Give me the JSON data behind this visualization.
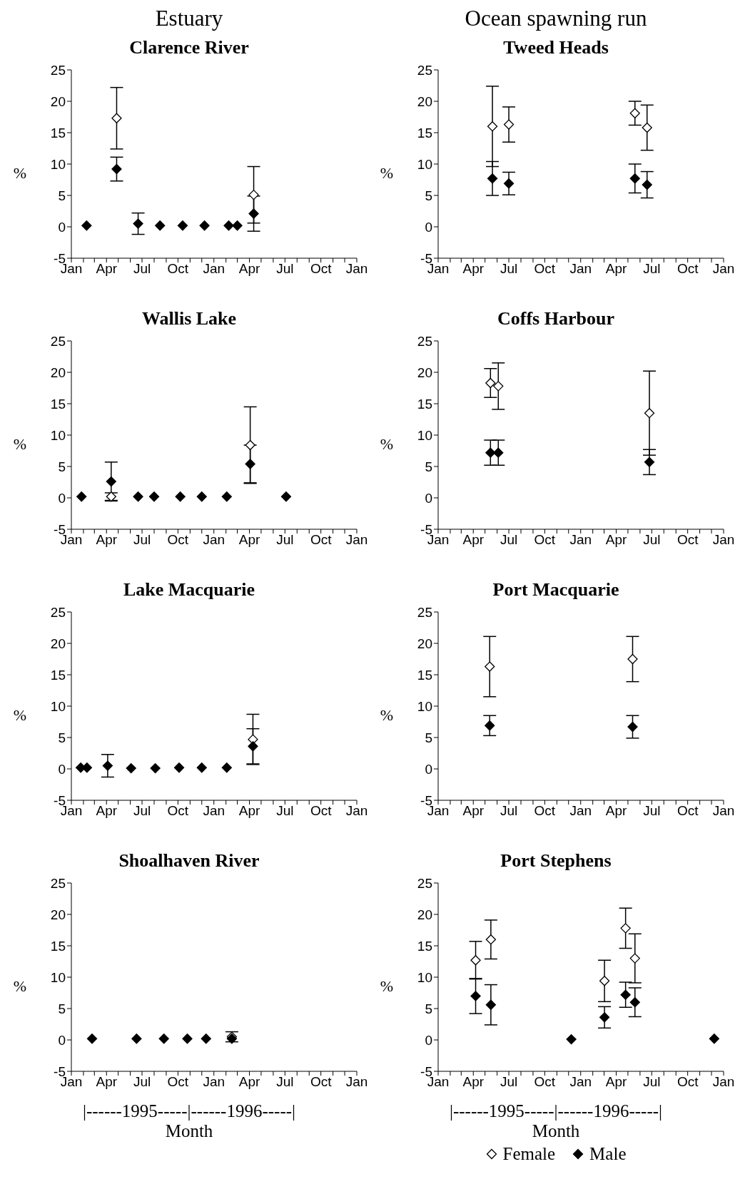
{
  "chart_data": [
    {
      "type": "scatter",
      "title": "Clarence River",
      "ylabel": "%",
      "annotations": [
        "Estuary"
      ],
      "marker": "diamond",
      "grid": false,
      "legend": false,
      "xlim": [
        "1995-01-01",
        "1997-01-01"
      ],
      "xticks": [
        {
          "value": "1995-01",
          "label": "Jan"
        },
        {
          "value": "1995-02",
          "label": null
        },
        {
          "value": "1995-03",
          "label": null
        },
        {
          "value": "1995-04",
          "label": "Apr"
        },
        {
          "value": "1995-05",
          "label": null
        },
        {
          "value": "1995-06",
          "label": null
        },
        {
          "value": "1995-07",
          "label": "Jul"
        },
        {
          "value": "1995-08",
          "label": null
        },
        {
          "value": "1995-09",
          "label": null
        },
        {
          "value": "1995-10",
          "label": "Oct"
        },
        {
          "value": "1995-11",
          "label": null
        },
        {
          "value": "1995-12",
          "label": null
        },
        {
          "value": "1996-01",
          "label": "Jan"
        },
        {
          "value": "1996-02",
          "label": null
        },
        {
          "value": "1996-03",
          "label": null
        },
        {
          "value": "1996-04",
          "label": "Apr"
        },
        {
          "value": "1996-05",
          "label": null
        },
        {
          "value": "1996-06",
          "label": null
        },
        {
          "value": "1996-07",
          "label": "Jul"
        },
        {
          "value": "1996-08",
          "label": null
        },
        {
          "value": "1996-09",
          "label": null
        },
        {
          "value": "1996-10",
          "label": "Oct"
        },
        {
          "value": "1996-11",
          "label": null
        },
        {
          "value": "1996-12",
          "label": null
        },
        {
          "value": "1997-01",
          "label": "Jan"
        }
      ],
      "ylim": [
        -5,
        25
      ],
      "yticks": [
        -5,
        0,
        5,
        10,
        15,
        20,
        25
      ],
      "series": [
        {
          "color": "#ffffff",
          "x": [
            "1995-04-27",
            "1996-04-12"
          ],
          "values": [
            17.3,
            5.1
          ],
          "errors": [
            4.9,
            4.5
          ]
        },
        {
          "color": "#000000",
          "x": [
            "1995-02-09",
            "1995-04-27",
            "1995-06-21",
            "1995-08-16",
            "1995-10-13",
            "1995-12-08",
            "1996-02-08",
            "1996-03-01",
            "1996-04-12"
          ],
          "values": [
            0.2,
            9.2,
            0.5,
            0.2,
            0.2,
            0.2,
            0.2,
            0.2,
            2.1
          ],
          "errors": [
            null,
            1.9,
            1.7,
            null,
            null,
            null,
            null,
            null,
            2.8
          ]
        }
      ]
    },
    {
      "type": "scatter",
      "title": "Tweed Heads",
      "ylabel": "%",
      "annotations": [
        "Ocean spawning run"
      ],
      "marker": "diamond",
      "grid": false,
      "legend": false,
      "xlim": [
        "1995-01-01",
        "1997-01-01"
      ],
      "xticks": [
        {
          "value": "1995-01",
          "label": "Jan"
        },
        {
          "value": "1995-02",
          "label": null
        },
        {
          "value": "1995-03",
          "label": null
        },
        {
          "value": "1995-04",
          "label": "Apr"
        },
        {
          "value": "1995-05",
          "label": null
        },
        {
          "value": "1995-06",
          "label": null
        },
        {
          "value": "1995-07",
          "label": "Jul"
        },
        {
          "value": "1995-08",
          "label": null
        },
        {
          "value": "1995-09",
          "label": null
        },
        {
          "value": "1995-10",
          "label": "Oct"
        },
        {
          "value": "1995-11",
          "label": null
        },
        {
          "value": "1995-12",
          "label": null
        },
        {
          "value": "1996-01",
          "label": "Jan"
        },
        {
          "value": "1996-02",
          "label": null
        },
        {
          "value": "1996-03",
          "label": null
        },
        {
          "value": "1996-04",
          "label": "Apr"
        },
        {
          "value": "1996-05",
          "label": null
        },
        {
          "value": "1996-06",
          "label": null
        },
        {
          "value": "1996-07",
          "label": "Jul"
        },
        {
          "value": "1996-08",
          "label": null
        },
        {
          "value": "1996-09",
          "label": null
        },
        {
          "value": "1996-10",
          "label": "Oct"
        },
        {
          "value": "1996-11",
          "label": null
        },
        {
          "value": "1996-12",
          "label": null
        },
        {
          "value": "1997-01",
          "label": "Jan"
        }
      ],
      "ylim": [
        -5,
        25
      ],
      "yticks": [
        -5,
        0,
        5,
        10,
        15,
        20,
        25
      ],
      "series": [
        {
          "color": "#ffffff",
          "x": [
            "1995-05-20",
            "1995-07-01",
            "1996-05-19",
            "1996-06-19"
          ],
          "values": [
            16.0,
            16.3,
            18.1,
            15.8
          ],
          "errors": [
            6.4,
            2.8,
            1.9,
            3.6
          ]
        },
        {
          "color": "#000000",
          "x": [
            "1995-05-20",
            "1995-07-01",
            "1996-05-19",
            "1996-06-19"
          ],
          "values": [
            7.7,
            6.9,
            7.7,
            6.7
          ],
          "errors": [
            2.7,
            1.8,
            2.3,
            2.1
          ]
        }
      ]
    },
    {
      "type": "scatter",
      "title": "Wallis Lake",
      "ylabel": "%",
      "marker": "diamond",
      "grid": false,
      "legend": false,
      "xlim": [
        "1995-01-01",
        "1997-01-01"
      ],
      "xticks": [
        {
          "value": "1995-01",
          "label": "Jan"
        },
        {
          "value": "1995-02",
          "label": null
        },
        {
          "value": "1995-03",
          "label": null
        },
        {
          "value": "1995-04",
          "label": "Apr"
        },
        {
          "value": "1995-05",
          "label": null
        },
        {
          "value": "1995-06",
          "label": null
        },
        {
          "value": "1995-07",
          "label": "Jul"
        },
        {
          "value": "1995-08",
          "label": null
        },
        {
          "value": "1995-09",
          "label": null
        },
        {
          "value": "1995-10",
          "label": "Oct"
        },
        {
          "value": "1995-11",
          "label": null
        },
        {
          "value": "1995-12",
          "label": null
        },
        {
          "value": "1996-01",
          "label": "Jan"
        },
        {
          "value": "1996-02",
          "label": null
        },
        {
          "value": "1996-03",
          "label": null
        },
        {
          "value": "1996-04",
          "label": "Apr"
        },
        {
          "value": "1996-05",
          "label": null
        },
        {
          "value": "1996-06",
          "label": null
        },
        {
          "value": "1996-07",
          "label": "Jul"
        },
        {
          "value": "1996-08",
          "label": null
        },
        {
          "value": "1996-09",
          "label": null
        },
        {
          "value": "1996-10",
          "label": "Oct"
        },
        {
          "value": "1996-11",
          "label": null
        },
        {
          "value": "1996-12",
          "label": null
        },
        {
          "value": "1997-01",
          "label": "Jan"
        }
      ],
      "ylim": [
        -5,
        25
      ],
      "yticks": [
        -5,
        0,
        5,
        10,
        15,
        20,
        25
      ],
      "series": [
        {
          "color": "#ffffff",
          "x": [
            "1995-04-13",
            "1996-04-03"
          ],
          "values": [
            0.2,
            8.4
          ],
          "errors": [
            0.6,
            6.1
          ]
        },
        {
          "color": "#000000",
          "x": [
            "1995-01-27",
            "1995-04-13",
            "1995-06-21",
            "1995-08-01",
            "1995-10-07",
            "1995-12-01",
            "1996-02-03",
            "1996-04-03",
            "1996-07-04"
          ],
          "values": [
            0.2,
            2.6,
            0.2,
            0.2,
            0.2,
            0.2,
            0.2,
            5.4,
            0.2
          ],
          "errors": [
            null,
            3.1,
            null,
            null,
            null,
            null,
            null,
            3.0,
            null
          ]
        }
      ]
    },
    {
      "type": "scatter",
      "title": "Coffs Harbour",
      "ylabel": "%",
      "marker": "diamond",
      "grid": false,
      "legend": false,
      "xlim": [
        "1995-01-01",
        "1997-01-01"
      ],
      "xticks": [
        {
          "value": "1995-01",
          "label": "Jan"
        },
        {
          "value": "1995-02",
          "label": null
        },
        {
          "value": "1995-03",
          "label": null
        },
        {
          "value": "1995-04",
          "label": "Apr"
        },
        {
          "value": "1995-05",
          "label": null
        },
        {
          "value": "1995-06",
          "label": null
        },
        {
          "value": "1995-07",
          "label": "Jul"
        },
        {
          "value": "1995-08",
          "label": null
        },
        {
          "value": "1995-09",
          "label": null
        },
        {
          "value": "1995-10",
          "label": "Oct"
        },
        {
          "value": "1995-11",
          "label": null
        },
        {
          "value": "1995-12",
          "label": null
        },
        {
          "value": "1996-01",
          "label": "Jan"
        },
        {
          "value": "1996-02",
          "label": null
        },
        {
          "value": "1996-03",
          "label": null
        },
        {
          "value": "1996-04",
          "label": "Apr"
        },
        {
          "value": "1996-05",
          "label": null
        },
        {
          "value": "1996-06",
          "label": null
        },
        {
          "value": "1996-07",
          "label": "Jul"
        },
        {
          "value": "1996-08",
          "label": null
        },
        {
          "value": "1996-09",
          "label": null
        },
        {
          "value": "1996-10",
          "label": "Oct"
        },
        {
          "value": "1996-11",
          "label": null
        },
        {
          "value": "1996-12",
          "label": null
        },
        {
          "value": "1997-01",
          "label": "Jan"
        }
      ],
      "ylim": [
        -5,
        25
      ],
      "yticks": [
        -5,
        0,
        5,
        10,
        15,
        20,
        25
      ],
      "series": [
        {
          "color": "#ffffff",
          "x": [
            "1995-05-15",
            "1995-06-04",
            "1996-06-25"
          ],
          "values": [
            18.3,
            17.8,
            13.5
          ],
          "errors": [
            2.3,
            3.7,
            6.7
          ]
        },
        {
          "color": "#000000",
          "x": [
            "1995-05-15",
            "1995-06-04",
            "1996-06-25"
          ],
          "values": [
            7.2,
            7.2,
            5.7
          ],
          "errors": [
            2.0,
            2.0,
            2.0
          ]
        }
      ]
    },
    {
      "type": "scatter",
      "title": "Lake Macquarie",
      "ylabel": "%",
      "marker": "diamond",
      "grid": false,
      "legend": false,
      "xlim": [
        "1995-01-01",
        "1997-01-01"
      ],
      "xticks": [
        {
          "value": "1995-01",
          "label": "Jan"
        },
        {
          "value": "1995-02",
          "label": null
        },
        {
          "value": "1995-03",
          "label": null
        },
        {
          "value": "1995-04",
          "label": "Apr"
        },
        {
          "value": "1995-05",
          "label": null
        },
        {
          "value": "1995-06",
          "label": null
        },
        {
          "value": "1995-07",
          "label": "Jul"
        },
        {
          "value": "1995-08",
          "label": null
        },
        {
          "value": "1995-09",
          "label": null
        },
        {
          "value": "1995-10",
          "label": "Oct"
        },
        {
          "value": "1995-11",
          "label": null
        },
        {
          "value": "1995-12",
          "label": null
        },
        {
          "value": "1996-01",
          "label": "Jan"
        },
        {
          "value": "1996-02",
          "label": null
        },
        {
          "value": "1996-03",
          "label": null
        },
        {
          "value": "1996-04",
          "label": "Apr"
        },
        {
          "value": "1996-05",
          "label": null
        },
        {
          "value": "1996-06",
          "label": null
        },
        {
          "value": "1996-07",
          "label": "Jul"
        },
        {
          "value": "1996-08",
          "label": null
        },
        {
          "value": "1996-09",
          "label": null
        },
        {
          "value": "1996-10",
          "label": "Oct"
        },
        {
          "value": "1996-11",
          "label": null
        },
        {
          "value": "1996-12",
          "label": null
        },
        {
          "value": "1997-01",
          "label": "Jan"
        }
      ],
      "ylim": [
        -5,
        25
      ],
      "yticks": [
        -5,
        0,
        5,
        10,
        15,
        20,
        25
      ],
      "series": [
        {
          "color": "#ffffff",
          "x": [
            "1996-04-10"
          ],
          "values": [
            4.7
          ],
          "errors": [
            4.0
          ]
        },
        {
          "color": "#000000",
          "x": [
            "1995-01-25",
            "1995-02-10",
            "1995-04-04",
            "1995-06-03",
            "1995-08-04",
            "1995-10-04",
            "1995-12-01",
            "1996-02-03",
            "1996-04-10"
          ],
          "values": [
            0.2,
            0.2,
            0.5,
            0.1,
            0.1,
            0.2,
            0.2,
            0.2,
            3.6
          ],
          "errors": [
            null,
            null,
            1.8,
            null,
            null,
            null,
            null,
            null,
            2.8
          ]
        }
      ]
    },
    {
      "type": "scatter",
      "title": "Port Macquarie",
      "ylabel": "%",
      "marker": "diamond",
      "grid": false,
      "legend": false,
      "xlim": [
        "1995-01-01",
        "1997-01-01"
      ],
      "xticks": [
        {
          "value": "1995-01",
          "label": "Jan"
        },
        {
          "value": "1995-02",
          "label": null
        },
        {
          "value": "1995-03",
          "label": null
        },
        {
          "value": "1995-04",
          "label": "Apr"
        },
        {
          "value": "1995-05",
          "label": null
        },
        {
          "value": "1995-06",
          "label": null
        },
        {
          "value": "1995-07",
          "label": "Jul"
        },
        {
          "value": "1995-08",
          "label": null
        },
        {
          "value": "1995-09",
          "label": null
        },
        {
          "value": "1995-10",
          "label": "Oct"
        },
        {
          "value": "1995-11",
          "label": null
        },
        {
          "value": "1995-12",
          "label": null
        },
        {
          "value": "1996-01",
          "label": "Jan"
        },
        {
          "value": "1996-02",
          "label": null
        },
        {
          "value": "1996-03",
          "label": null
        },
        {
          "value": "1996-04",
          "label": "Apr"
        },
        {
          "value": "1996-05",
          "label": null
        },
        {
          "value": "1996-06",
          "label": null
        },
        {
          "value": "1996-07",
          "label": "Jul"
        },
        {
          "value": "1996-08",
          "label": null
        },
        {
          "value": "1996-09",
          "label": null
        },
        {
          "value": "1996-10",
          "label": "Oct"
        },
        {
          "value": "1996-11",
          "label": null
        },
        {
          "value": "1996-12",
          "label": null
        },
        {
          "value": "1997-01",
          "label": "Jan"
        }
      ],
      "ylim": [
        -5,
        25
      ],
      "yticks": [
        -5,
        0,
        5,
        10,
        15,
        20,
        25
      ],
      "series": [
        {
          "color": "#ffffff",
          "x": [
            "1995-05-13",
            "1996-05-13"
          ],
          "values": [
            16.3,
            17.5
          ],
          "errors": [
            4.8,
            3.6
          ]
        },
        {
          "color": "#000000",
          "x": [
            "1995-05-13",
            "1996-05-13"
          ],
          "values": [
            6.9,
            6.7
          ],
          "errors": [
            1.6,
            1.8
          ]
        }
      ]
    },
    {
      "type": "scatter",
      "title": "Shoalhaven River",
      "ylabel": "%",
      "xlabel": "Month",
      "annotations": [
        "|------1995-----|------1996-----|"
      ],
      "marker": "diamond",
      "grid": false,
      "legend": false,
      "xlim": [
        "1995-01-01",
        "1997-01-01"
      ],
      "xticks": [
        {
          "value": "1995-01",
          "label": "Jan"
        },
        {
          "value": "1995-02",
          "label": null
        },
        {
          "value": "1995-03",
          "label": null
        },
        {
          "value": "1995-04",
          "label": "Apr"
        },
        {
          "value": "1995-05",
          "label": null
        },
        {
          "value": "1995-06",
          "label": null
        },
        {
          "value": "1995-07",
          "label": "Jul"
        },
        {
          "value": "1995-08",
          "label": null
        },
        {
          "value": "1995-09",
          "label": null
        },
        {
          "value": "1995-10",
          "label": "Oct"
        },
        {
          "value": "1995-11",
          "label": null
        },
        {
          "value": "1995-12",
          "label": null
        },
        {
          "value": "1996-01",
          "label": "Jan"
        },
        {
          "value": "1996-02",
          "label": null
        },
        {
          "value": "1996-03",
          "label": null
        },
        {
          "value": "1996-04",
          "label": "Apr"
        },
        {
          "value": "1996-05",
          "label": null
        },
        {
          "value": "1996-06",
          "label": null
        },
        {
          "value": "1996-07",
          "label": "Jul"
        },
        {
          "value": "1996-08",
          "label": null
        },
        {
          "value": "1996-09",
          "label": null
        },
        {
          "value": "1996-10",
          "label": "Oct"
        },
        {
          "value": "1996-11",
          "label": null
        },
        {
          "value": "1996-12",
          "label": null
        },
        {
          "value": "1997-01",
          "label": "Jan"
        }
      ],
      "ylim": [
        -5,
        25
      ],
      "yticks": [
        -5,
        0,
        5,
        10,
        15,
        20,
        25
      ],
      "series": [
        {
          "color": "#ffffff",
          "x": [
            "1996-02-16"
          ],
          "values": [
            0.5
          ],
          "errors": [
            0.8
          ]
        },
        {
          "color": "#000000",
          "x": [
            "1995-02-23",
            "1995-06-17",
            "1995-08-26",
            "1995-10-25",
            "1995-12-12",
            "1996-02-16"
          ],
          "values": [
            0.2,
            0.2,
            0.2,
            0.2,
            0.2,
            0.2
          ]
        }
      ]
    },
    {
      "type": "scatter",
      "title": "Port Stephens",
      "ylabel": "%",
      "xlabel": "Month",
      "annotations": [
        "|------1995-----|------1996-----|"
      ],
      "marker": "diamond",
      "grid": false,
      "legend": "bottom",
      "xlim": [
        "1995-01-01",
        "1997-01-01"
      ],
      "xticks": [
        {
          "value": "1995-01",
          "label": "Jan"
        },
        {
          "value": "1995-02",
          "label": null
        },
        {
          "value": "1995-03",
          "label": null
        },
        {
          "value": "1995-04",
          "label": "Apr"
        },
        {
          "value": "1995-05",
          "label": null
        },
        {
          "value": "1995-06",
          "label": null
        },
        {
          "value": "1995-07",
          "label": "Jul"
        },
        {
          "value": "1995-08",
          "label": null
        },
        {
          "value": "1995-09",
          "label": null
        },
        {
          "value": "1995-10",
          "label": "Oct"
        },
        {
          "value": "1995-11",
          "label": null
        },
        {
          "value": "1995-12",
          "label": null
        },
        {
          "value": "1996-01",
          "label": "Jan"
        },
        {
          "value": "1996-02",
          "label": null
        },
        {
          "value": "1996-03",
          "label": null
        },
        {
          "value": "1996-04",
          "label": "Apr"
        },
        {
          "value": "1996-05",
          "label": null
        },
        {
          "value": "1996-06",
          "label": null
        },
        {
          "value": "1996-07",
          "label": "Jul"
        },
        {
          "value": "1996-08",
          "label": null
        },
        {
          "value": "1996-09",
          "label": null
        },
        {
          "value": "1996-10",
          "label": "Oct"
        },
        {
          "value": "1996-11",
          "label": null
        },
        {
          "value": "1996-12",
          "label": null
        },
        {
          "value": "1997-01",
          "label": "Jan"
        }
      ],
      "ylim": [
        -5,
        25
      ],
      "yticks": [
        -5,
        0,
        5,
        10,
        15,
        20,
        25
      ],
      "series": [
        {
          "name": "Female",
          "color": "#ffffff",
          "x": [
            "1995-04-07",
            "1995-05-16",
            "1996-03-02",
            "1996-04-25",
            "1996-05-19"
          ],
          "values": [
            12.7,
            16.0,
            9.4,
            17.8,
            13.0
          ],
          "errors": [
            3.0,
            3.1,
            3.3,
            3.2,
            3.9
          ]
        },
        {
          "name": "Male",
          "color": "#000000",
          "x": [
            "1995-04-07",
            "1995-05-16",
            "1995-12-08",
            "1996-03-02",
            "1996-04-25",
            "1996-05-19",
            "1996-12-08"
          ],
          "values": [
            7.0,
            5.6,
            0.1,
            3.6,
            7.2,
            6.0,
            0.2
          ],
          "errors": [
            2.8,
            3.2,
            null,
            1.7,
            2.0,
            2.3,
            null
          ]
        }
      ]
    }
  ]
}
